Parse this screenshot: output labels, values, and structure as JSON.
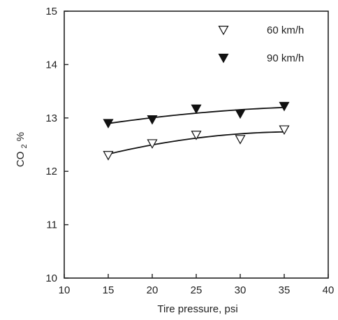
{
  "chart_data": {
    "type": "scatter",
    "title": "",
    "xlabel": "Tire pressure, psi",
    "ylabel_main": "CO",
    "ylabel_sub": "2",
    "ylabel_unit": " %",
    "xlim": [
      10,
      40
    ],
    "ylim": [
      10,
      15
    ],
    "x_ticks": [
      10,
      15,
      20,
      25,
      30,
      35,
      40
    ],
    "y_ticks": [
      10,
      11,
      12,
      13,
      14,
      15
    ],
    "grid": false,
    "legend_position": "top-right",
    "series": [
      {
        "name": "60 km/h",
        "marker": "triangle-down-open",
        "x": [
          15,
          20,
          25,
          30,
          35
        ],
        "y": [
          12.3,
          12.52,
          12.68,
          12.6,
          12.78
        ],
        "fit_line": true
      },
      {
        "name": "90 km/h",
        "marker": "triangle-down-filled",
        "x": [
          15,
          20,
          25,
          30,
          35
        ],
        "y": [
          12.9,
          12.97,
          13.17,
          13.08,
          13.22
        ],
        "fit_line": true
      }
    ]
  }
}
